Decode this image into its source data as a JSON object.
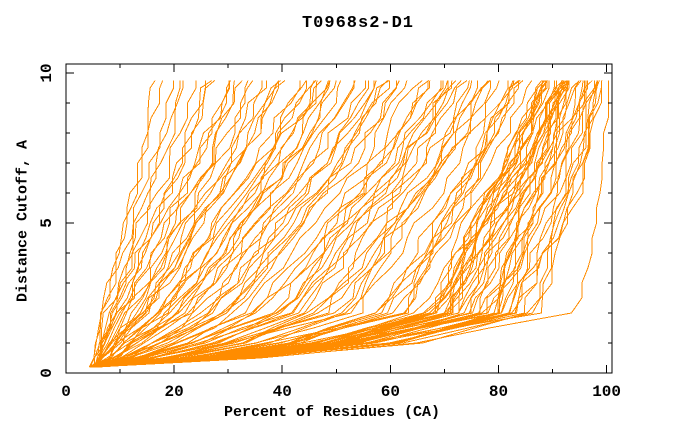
{
  "chart_data": {
    "type": "line",
    "title": "T0968s2-D1",
    "xlabel": "Percent of Residues (CA)",
    "ylabel": "Distance Cutoff, A",
    "xlim": [
      0,
      101
    ],
    "ylim": [
      0,
      10.3
    ],
    "x_ticks_major": [
      0,
      20,
      40,
      60,
      80,
      100
    ],
    "x_ticks_minor": [
      10,
      30,
      50,
      70,
      90
    ],
    "y_ticks_major": [
      0,
      5,
      10
    ],
    "y_ticks_minor": [
      1,
      2,
      3,
      4,
      6,
      7,
      8,
      9
    ],
    "grid": false,
    "legend": null,
    "colors": {
      "curve": "#ff8c00",
      "axis": "#000000",
      "background": "#ffffff",
      "text": "#000000"
    },
    "series_description": "Bundle of ~120 per-model cumulative accuracy curves: percent of CA residues (x) fitting under each distance cutoff (y). All curves converge near x=5 at cutoff 0; tops fan out from x=18 (best model) to x=100 (worst models); a dense cluster of poor models hugs the bottom then rises steeply near x=88-100.",
    "curves": {
      "count": 118,
      "uniform_count": 88,
      "cluster_count": 30,
      "cluster_q_range": [
        0.82,
        1.0
      ],
      "seed": 12,
      "start_x_range": [
        4.3,
        5.8
      ],
      "start_y": 0.2,
      "y_top": 9.75,
      "y_step": 0.5,
      "x_top_min": 18,
      "x_top_span": 82,
      "x_top_max": 100.3,
      "frac_at_y1": {
        "base": 0.08,
        "gain": 0.55,
        "pow": 1.6
      },
      "frac_at_y2": {
        "base": 0.16,
        "gain": 0.72,
        "pow": 1.2
      },
      "frac_at_y5": {
        "base": 0.5,
        "gain": 0.43,
        "pow": 1.2
      },
      "noise_amp": 1.2
    }
  }
}
